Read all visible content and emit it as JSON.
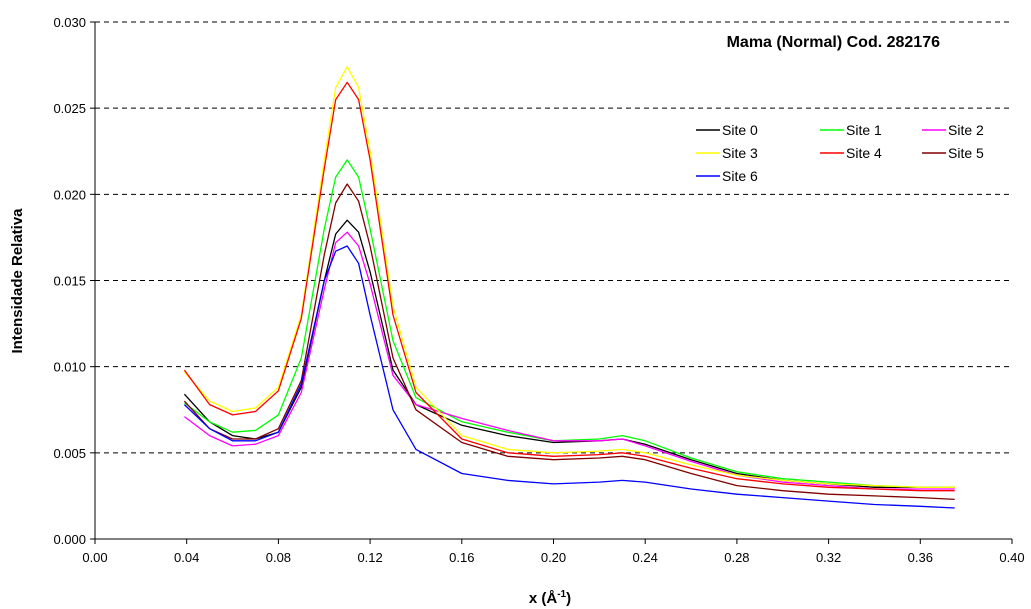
{
  "chart_data": {
    "type": "line",
    "title": "Mama (Normal) Cod. 282176",
    "xlabel_base": "x (Å",
    "xlabel_sup": "-1",
    "xlabel_end": ")",
    "ylabel": "Intensidade Relativa",
    "xlim": [
      0.0,
      0.4
    ],
    "ylim": [
      0.0,
      0.03
    ],
    "x_ticks": [
      "0.00",
      "0.04",
      "0.08",
      "0.12",
      "0.16",
      "0.20",
      "0.24",
      "0.28",
      "0.32",
      "0.36",
      "0.40"
    ],
    "y_ticks": [
      "0.000",
      "0.005",
      "0.010",
      "0.015",
      "0.020",
      "0.025",
      "0.030"
    ],
    "grid": "horizontal dashed",
    "legend_position": "top-right",
    "series": [
      {
        "name": "Site 0",
        "color": "#000000",
        "x": [
          0.039,
          0.05,
          0.06,
          0.07,
          0.08,
          0.09,
          0.1,
          0.105,
          0.11,
          0.115,
          0.12,
          0.13,
          0.14,
          0.16,
          0.18,
          0.2,
          0.22,
          0.23,
          0.24,
          0.26,
          0.28,
          0.3,
          0.32,
          0.34,
          0.36,
          0.375
        ],
        "y": [
          0.0084,
          0.0068,
          0.006,
          0.0058,
          0.0062,
          0.0088,
          0.015,
          0.0177,
          0.0185,
          0.0178,
          0.0155,
          0.0098,
          0.0078,
          0.0066,
          0.006,
          0.0056,
          0.0057,
          0.0058,
          0.0055,
          0.0046,
          0.0038,
          0.0034,
          0.0032,
          0.003,
          0.003,
          0.003
        ]
      },
      {
        "name": "Site 1",
        "color": "#00ff00",
        "x": [
          0.039,
          0.05,
          0.06,
          0.07,
          0.08,
          0.09,
          0.1,
          0.105,
          0.11,
          0.115,
          0.12,
          0.13,
          0.14,
          0.16,
          0.18,
          0.2,
          0.22,
          0.23,
          0.24,
          0.26,
          0.28,
          0.3,
          0.32,
          0.34,
          0.36,
          0.375
        ],
        "y": [
          0.0079,
          0.0068,
          0.0062,
          0.0063,
          0.0072,
          0.0105,
          0.018,
          0.021,
          0.022,
          0.021,
          0.018,
          0.0115,
          0.0082,
          0.0068,
          0.0062,
          0.0057,
          0.0058,
          0.006,
          0.0057,
          0.0047,
          0.0039,
          0.0035,
          0.0033,
          0.0031,
          0.003,
          0.003
        ]
      },
      {
        "name": "Site 2",
        "color": "#ff00ff",
        "x": [
          0.039,
          0.05,
          0.06,
          0.07,
          0.08,
          0.09,
          0.1,
          0.105,
          0.11,
          0.115,
          0.12,
          0.13,
          0.14,
          0.16,
          0.18,
          0.2,
          0.22,
          0.23,
          0.24,
          0.26,
          0.28,
          0.3,
          0.32,
          0.34,
          0.36,
          0.375
        ],
        "y": [
          0.0071,
          0.006,
          0.0054,
          0.0055,
          0.006,
          0.0085,
          0.0145,
          0.0172,
          0.0178,
          0.017,
          0.0148,
          0.0095,
          0.0078,
          0.007,
          0.0063,
          0.0057,
          0.0057,
          0.0058,
          0.0054,
          0.0045,
          0.0037,
          0.0033,
          0.0031,
          0.0029,
          0.0029,
          0.0029
        ]
      },
      {
        "name": "Site 3",
        "color": "#ffff00",
        "x": [
          0.039,
          0.05,
          0.06,
          0.07,
          0.08,
          0.09,
          0.1,
          0.105,
          0.11,
          0.115,
          0.12,
          0.13,
          0.14,
          0.16,
          0.18,
          0.2,
          0.22,
          0.23,
          0.24,
          0.26,
          0.28,
          0.3,
          0.32,
          0.34,
          0.36,
          0.375
        ],
        "y": [
          0.0097,
          0.008,
          0.0074,
          0.0076,
          0.0088,
          0.013,
          0.022,
          0.0262,
          0.0274,
          0.0262,
          0.0225,
          0.0135,
          0.0088,
          0.006,
          0.0052,
          0.005,
          0.0051,
          0.0052,
          0.005,
          0.0043,
          0.0037,
          0.0034,
          0.0032,
          0.0031,
          0.003,
          0.003
        ]
      },
      {
        "name": "Site 4",
        "color": "#ff0000",
        "x": [
          0.039,
          0.05,
          0.06,
          0.07,
          0.08,
          0.09,
          0.1,
          0.105,
          0.11,
          0.115,
          0.12,
          0.13,
          0.14,
          0.16,
          0.18,
          0.2,
          0.22,
          0.23,
          0.24,
          0.26,
          0.28,
          0.3,
          0.32,
          0.34,
          0.36,
          0.375
        ],
        "y": [
          0.0098,
          0.0078,
          0.0072,
          0.0074,
          0.0086,
          0.0128,
          0.0215,
          0.0255,
          0.0265,
          0.0255,
          0.022,
          0.013,
          0.0085,
          0.0058,
          0.005,
          0.0048,
          0.0049,
          0.005,
          0.0048,
          0.0041,
          0.0035,
          0.0032,
          0.003,
          0.0029,
          0.0028,
          0.0028
        ]
      },
      {
        "name": "Site 5",
        "color": "#800000",
        "x": [
          0.039,
          0.05,
          0.06,
          0.07,
          0.08,
          0.09,
          0.1,
          0.105,
          0.11,
          0.115,
          0.12,
          0.13,
          0.14,
          0.16,
          0.18,
          0.2,
          0.22,
          0.23,
          0.24,
          0.26,
          0.28,
          0.3,
          0.32,
          0.34,
          0.36,
          0.375
        ],
        "y": [
          0.008,
          0.0064,
          0.0058,
          0.0058,
          0.0064,
          0.0092,
          0.0165,
          0.0195,
          0.0206,
          0.0196,
          0.017,
          0.0105,
          0.0075,
          0.0056,
          0.0048,
          0.0046,
          0.0047,
          0.0048,
          0.0046,
          0.0038,
          0.0031,
          0.0028,
          0.0026,
          0.0025,
          0.0024,
          0.0023
        ]
      },
      {
        "name": "Site 6",
        "color": "#0000ff",
        "x": [
          0.039,
          0.05,
          0.06,
          0.07,
          0.08,
          0.09,
          0.1,
          0.105,
          0.11,
          0.115,
          0.12,
          0.13,
          0.14,
          0.16,
          0.18,
          0.2,
          0.22,
          0.23,
          0.24,
          0.26,
          0.28,
          0.3,
          0.32,
          0.34,
          0.36,
          0.375
        ],
        "y": [
          0.0078,
          0.0064,
          0.0057,
          0.0057,
          0.0062,
          0.009,
          0.015,
          0.0167,
          0.017,
          0.016,
          0.013,
          0.0075,
          0.0052,
          0.0038,
          0.0034,
          0.0032,
          0.0033,
          0.0034,
          0.0033,
          0.0029,
          0.0026,
          0.0024,
          0.0022,
          0.002,
          0.0019,
          0.0018
        ]
      }
    ]
  }
}
